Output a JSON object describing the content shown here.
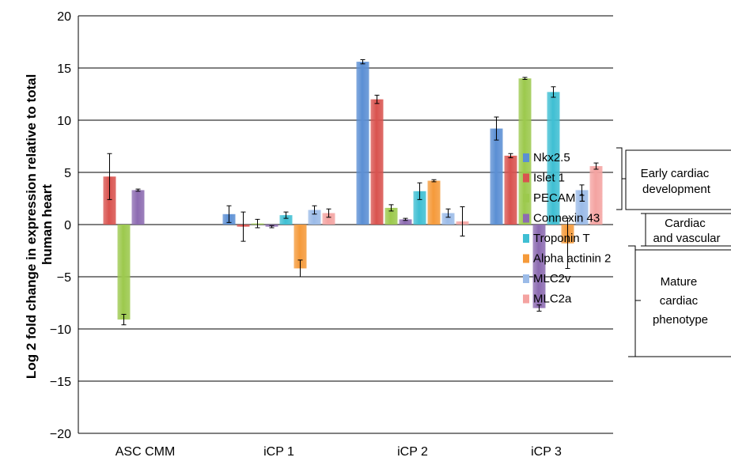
{
  "chart_data": {
    "type": "bar",
    "ylabel_lines": [
      "Log 2 fold change in expression relative to total",
      "human heart"
    ],
    "categories": [
      "ASC CMM",
      "iCP 1",
      "iCP 2",
      "iCP 3"
    ],
    "ylim": [
      -20,
      20
    ],
    "yticks": [
      "20",
      "15",
      "10",
      "5",
      "0",
      "−5",
      "−10",
      "−15",
      "−20"
    ],
    "ytick_values": [
      20,
      15,
      10,
      5,
      0,
      -5,
      -10,
      -15,
      -20
    ],
    "grid": true,
    "legend_position": "right",
    "series": [
      {
        "name": "Nkx2.5",
        "color": "#5b8fd4",
        "values": [
          0,
          1.0,
          15.6,
          9.2
        ],
        "errors": [
          0,
          0.8,
          0.2,
          1.1
        ]
      },
      {
        "name": "Islet 1",
        "color": "#d9534f",
        "values": [
          4.6,
          -0.2,
          12.0,
          6.6
        ],
        "errors": [
          2.2,
          1.4,
          0.4,
          0.2
        ]
      },
      {
        "name": "PECAM 1",
        "color": "#9cc94d",
        "values": [
          -9.1,
          0.1,
          1.6,
          14.0
        ],
        "errors": [
          0.5,
          0.4,
          0.3,
          0.1
        ]
      },
      {
        "name": "Connexin 43",
        "color": "#8c6bb1",
        "values": [
          3.3,
          -0.2,
          0.5,
          -8.0
        ],
        "errors": [
          0.1,
          0.1,
          0.1,
          0.3
        ]
      },
      {
        "name": "Troponin T",
        "color": "#3fbfd3",
        "values": [
          0,
          0.9,
          3.2,
          12.7
        ],
        "errors": [
          0,
          0.3,
          0.8,
          0.5
        ]
      },
      {
        "name": "Alpha actinin 2",
        "color": "#f59a3a",
        "values": [
          0,
          -4.2,
          4.2,
          -1.8
        ],
        "errors": [
          0,
          0.8,
          0.1,
          2.4
        ]
      },
      {
        "name": "MLC2v",
        "color": "#9bbbe8",
        "values": [
          0,
          1.4,
          1.1,
          3.3
        ],
        "errors": [
          0,
          0.4,
          0.4,
          0.5
        ]
      },
      {
        "name": "MLC2a",
        "color": "#f4a3a1",
        "values": [
          0,
          1.1,
          0.3,
          5.6
        ],
        "errors": [
          0,
          0.4,
          1.4,
          0.3
        ]
      }
    ],
    "annotations": [
      {
        "lines": [
          "Early cardiac",
          "development"
        ]
      },
      {
        "lines": [
          "Cardiac",
          "and vascular"
        ]
      },
      {
        "lines": [
          "Mature",
          "cardiac",
          "phenotype"
        ]
      }
    ]
  }
}
